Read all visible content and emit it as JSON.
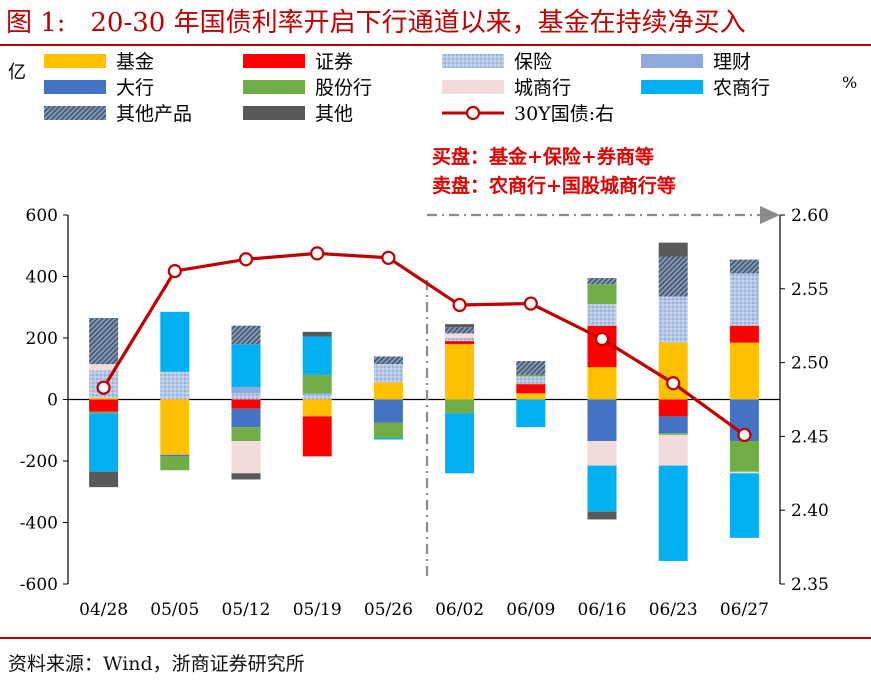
{
  "figure": {
    "title": "图 1:   20-30 年国债利率开启下行通道以来，基金在持续净买入",
    "source": "资料来源：Wind，浙商证券研究所"
  },
  "chart_data": {
    "type": "bar",
    "stacked": true,
    "categories": [
      "04/28",
      "05/05",
      "05/12",
      "05/19",
      "05/26",
      "06/02",
      "06/09",
      "06/16",
      "06/23",
      "06/27"
    ],
    "left_axis": {
      "unit": "亿",
      "ylim": [
        -600,
        600
      ],
      "ticks": [
        "600",
        "400",
        "200",
        "0",
        "-200",
        "-400",
        "-600"
      ]
    },
    "right_axis": {
      "unit": "%",
      "ylim": [
        2.35,
        2.6
      ],
      "ticks": [
        "2.60",
        "2.55",
        "2.50",
        "2.45",
        "2.40",
        "2.35"
      ]
    },
    "legend": [
      "基金",
      "证券",
      "保险",
      "理财",
      "大行",
      "股份行",
      "城商行",
      "农商行",
      "其他产品",
      "其他",
      "30Y国债:右"
    ],
    "series": [
      {
        "name": "基金",
        "color": "#ffc000",
        "values": [
          5,
          -180,
          0,
          -55,
          55,
          180,
          20,
          105,
          185,
          185
        ]
      },
      {
        "name": "证券",
        "color": "#ff0000",
        "values": [
          -40,
          0,
          -30,
          -130,
          0,
          10,
          30,
          135,
          -55,
          55
        ]
      },
      {
        "name": "保险",
        "color": "#b4c7e7",
        "pattern": true,
        "values": [
          90,
          90,
          20,
          15,
          60,
          10,
          25,
          70,
          150,
          170
        ]
      },
      {
        "name": "理财",
        "color": "#8faadc",
        "values": [
          0,
          0,
          20,
          5,
          0,
          0,
          0,
          0,
          0,
          0
        ]
      },
      {
        "name": "大行",
        "color": "#4472c4",
        "values": [
          0,
          -5,
          -60,
          0,
          -75,
          0,
          0,
          -135,
          -55,
          -135
        ]
      },
      {
        "name": "股份行",
        "color": "#70ad47",
        "values": [
          -5,
          -45,
          -45,
          60,
          -50,
          -45,
          5,
          65,
          -5,
          -100
        ]
      },
      {
        "name": "城商行",
        "color": "#f2dcdb",
        "values": [
          20,
          0,
          -105,
          0,
          0,
          15,
          0,
          -80,
          -100,
          -5
        ]
      },
      {
        "name": "农商行",
        "color": "#00b0f0",
        "values": [
          -190,
          195,
          140,
          125,
          -5,
          -195,
          -90,
          -150,
          -310,
          -210
        ]
      },
      {
        "name": "其他产品",
        "color": "#8497b0",
        "pattern": true,
        "values": [
          150,
          0,
          60,
          0,
          25,
          20,
          45,
          20,
          130,
          45
        ]
      },
      {
        "name": "其他",
        "color": "#595959",
        "values": [
          -50,
          0,
          -20,
          15,
          0,
          10,
          0,
          -25,
          45,
          0
        ]
      }
    ],
    "line": {
      "name": "30Y国债:右",
      "color": "#c00000",
      "values": [
        2.483,
        2.562,
        2.57,
        2.574,
        2.571,
        2.539,
        2.54,
        2.516,
        2.486,
        2.451
      ]
    },
    "annotations": {
      "buy": "买盘：基金+保险+券商等",
      "sell": "卖盘：农商行+国股城商行等"
    }
  }
}
